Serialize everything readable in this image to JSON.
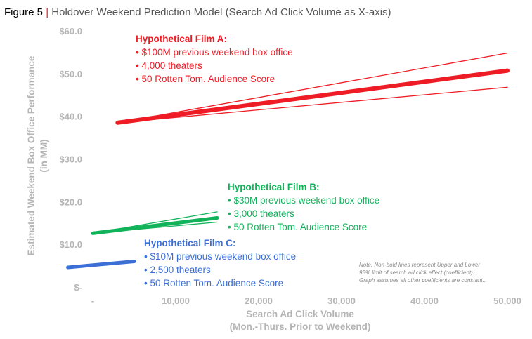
{
  "figure_title": {
    "prefix": "Figure 5",
    "separator": " | ",
    "text": "Holdover Weekend Prediction Model (Search Ad Click Volume as X-axis)"
  },
  "colors": {
    "film_a": "#ee1c25",
    "film_b": "#11b35a",
    "film_c": "#3b6fd6",
    "axis_text": "#b5b5b5",
    "title_text": "#555555"
  },
  "note": [
    "Note: Non-bold lines represent Upper and Lower",
    "95% limit of search ad click effect (coefficient).",
    "Graph assumes all other coefficients are constant.."
  ],
  "annotations": [
    {
      "title": "Hypothetical Film A:",
      "bullets": [
        "• $100M previous weekend box office",
        "• 4,000 theaters",
        "• 50 Rotten Tom. Audience Score"
      ]
    },
    {
      "title": "Hypothetical Film B:",
      "bullets": [
        "• $30M previous weekend box office",
        "• 3,000 theaters",
        "• 50 Rotten Tom. Audience Score"
      ]
    },
    {
      "title": "Hypothetical Film C:",
      "bullets": [
        "• $10M previous weekend box office",
        "• 2,500 theaters",
        "• 50 Rotten Tom. Audience Score"
      ]
    }
  ],
  "chart_data": {
    "type": "line",
    "xlabel": [
      "Search Ad Click Volume",
      "(Mon.-Thurs. Prior to Weekend)"
    ],
    "ylabel": [
      "Estimated Weekend Box Office Performance",
      "(in MM)"
    ],
    "xlim": [
      0,
      50000
    ],
    "ylim": [
      0,
      60
    ],
    "x_ticks": [
      0,
      10000,
      20000,
      30000,
      40000,
      50000
    ],
    "x_tick_labels": [
      "-",
      "10,000",
      "20,000",
      "30,000",
      "40,000",
      "50,000"
    ],
    "y_ticks": [
      0,
      10,
      20,
      30,
      40,
      50,
      60
    ],
    "y_tick_labels": [
      "$-",
      "$10.0",
      "$20.0",
      "$30.0",
      "$40.0",
      "$50.0",
      "$60.0"
    ],
    "grid": false,
    "series": [
      {
        "film": "A",
        "kind": "estimate",
        "x": [
          3000,
          50000
        ],
        "y": [
          38.5,
          50.7
        ]
      },
      {
        "film": "A",
        "kind": "upper",
        "x": [
          3000,
          50000
        ],
        "y": [
          38.5,
          54.8
        ]
      },
      {
        "film": "A",
        "kind": "lower",
        "x": [
          3000,
          50000
        ],
        "y": [
          38.5,
          46.8
        ]
      },
      {
        "film": "B",
        "kind": "estimate",
        "x": [
          0,
          15000
        ],
        "y": [
          12.6,
          16.2
        ]
      },
      {
        "film": "B",
        "kind": "upper",
        "x": [
          0,
          15000
        ],
        "y": [
          12.6,
          17.6
        ]
      },
      {
        "film": "B",
        "kind": "lower",
        "x": [
          0,
          15000
        ],
        "y": [
          12.6,
          15.2
        ]
      },
      {
        "film": "C",
        "kind": "estimate",
        "x": [
          -3000,
          5000
        ],
        "y": [
          4.6,
          6.0
        ]
      }
    ]
  }
}
